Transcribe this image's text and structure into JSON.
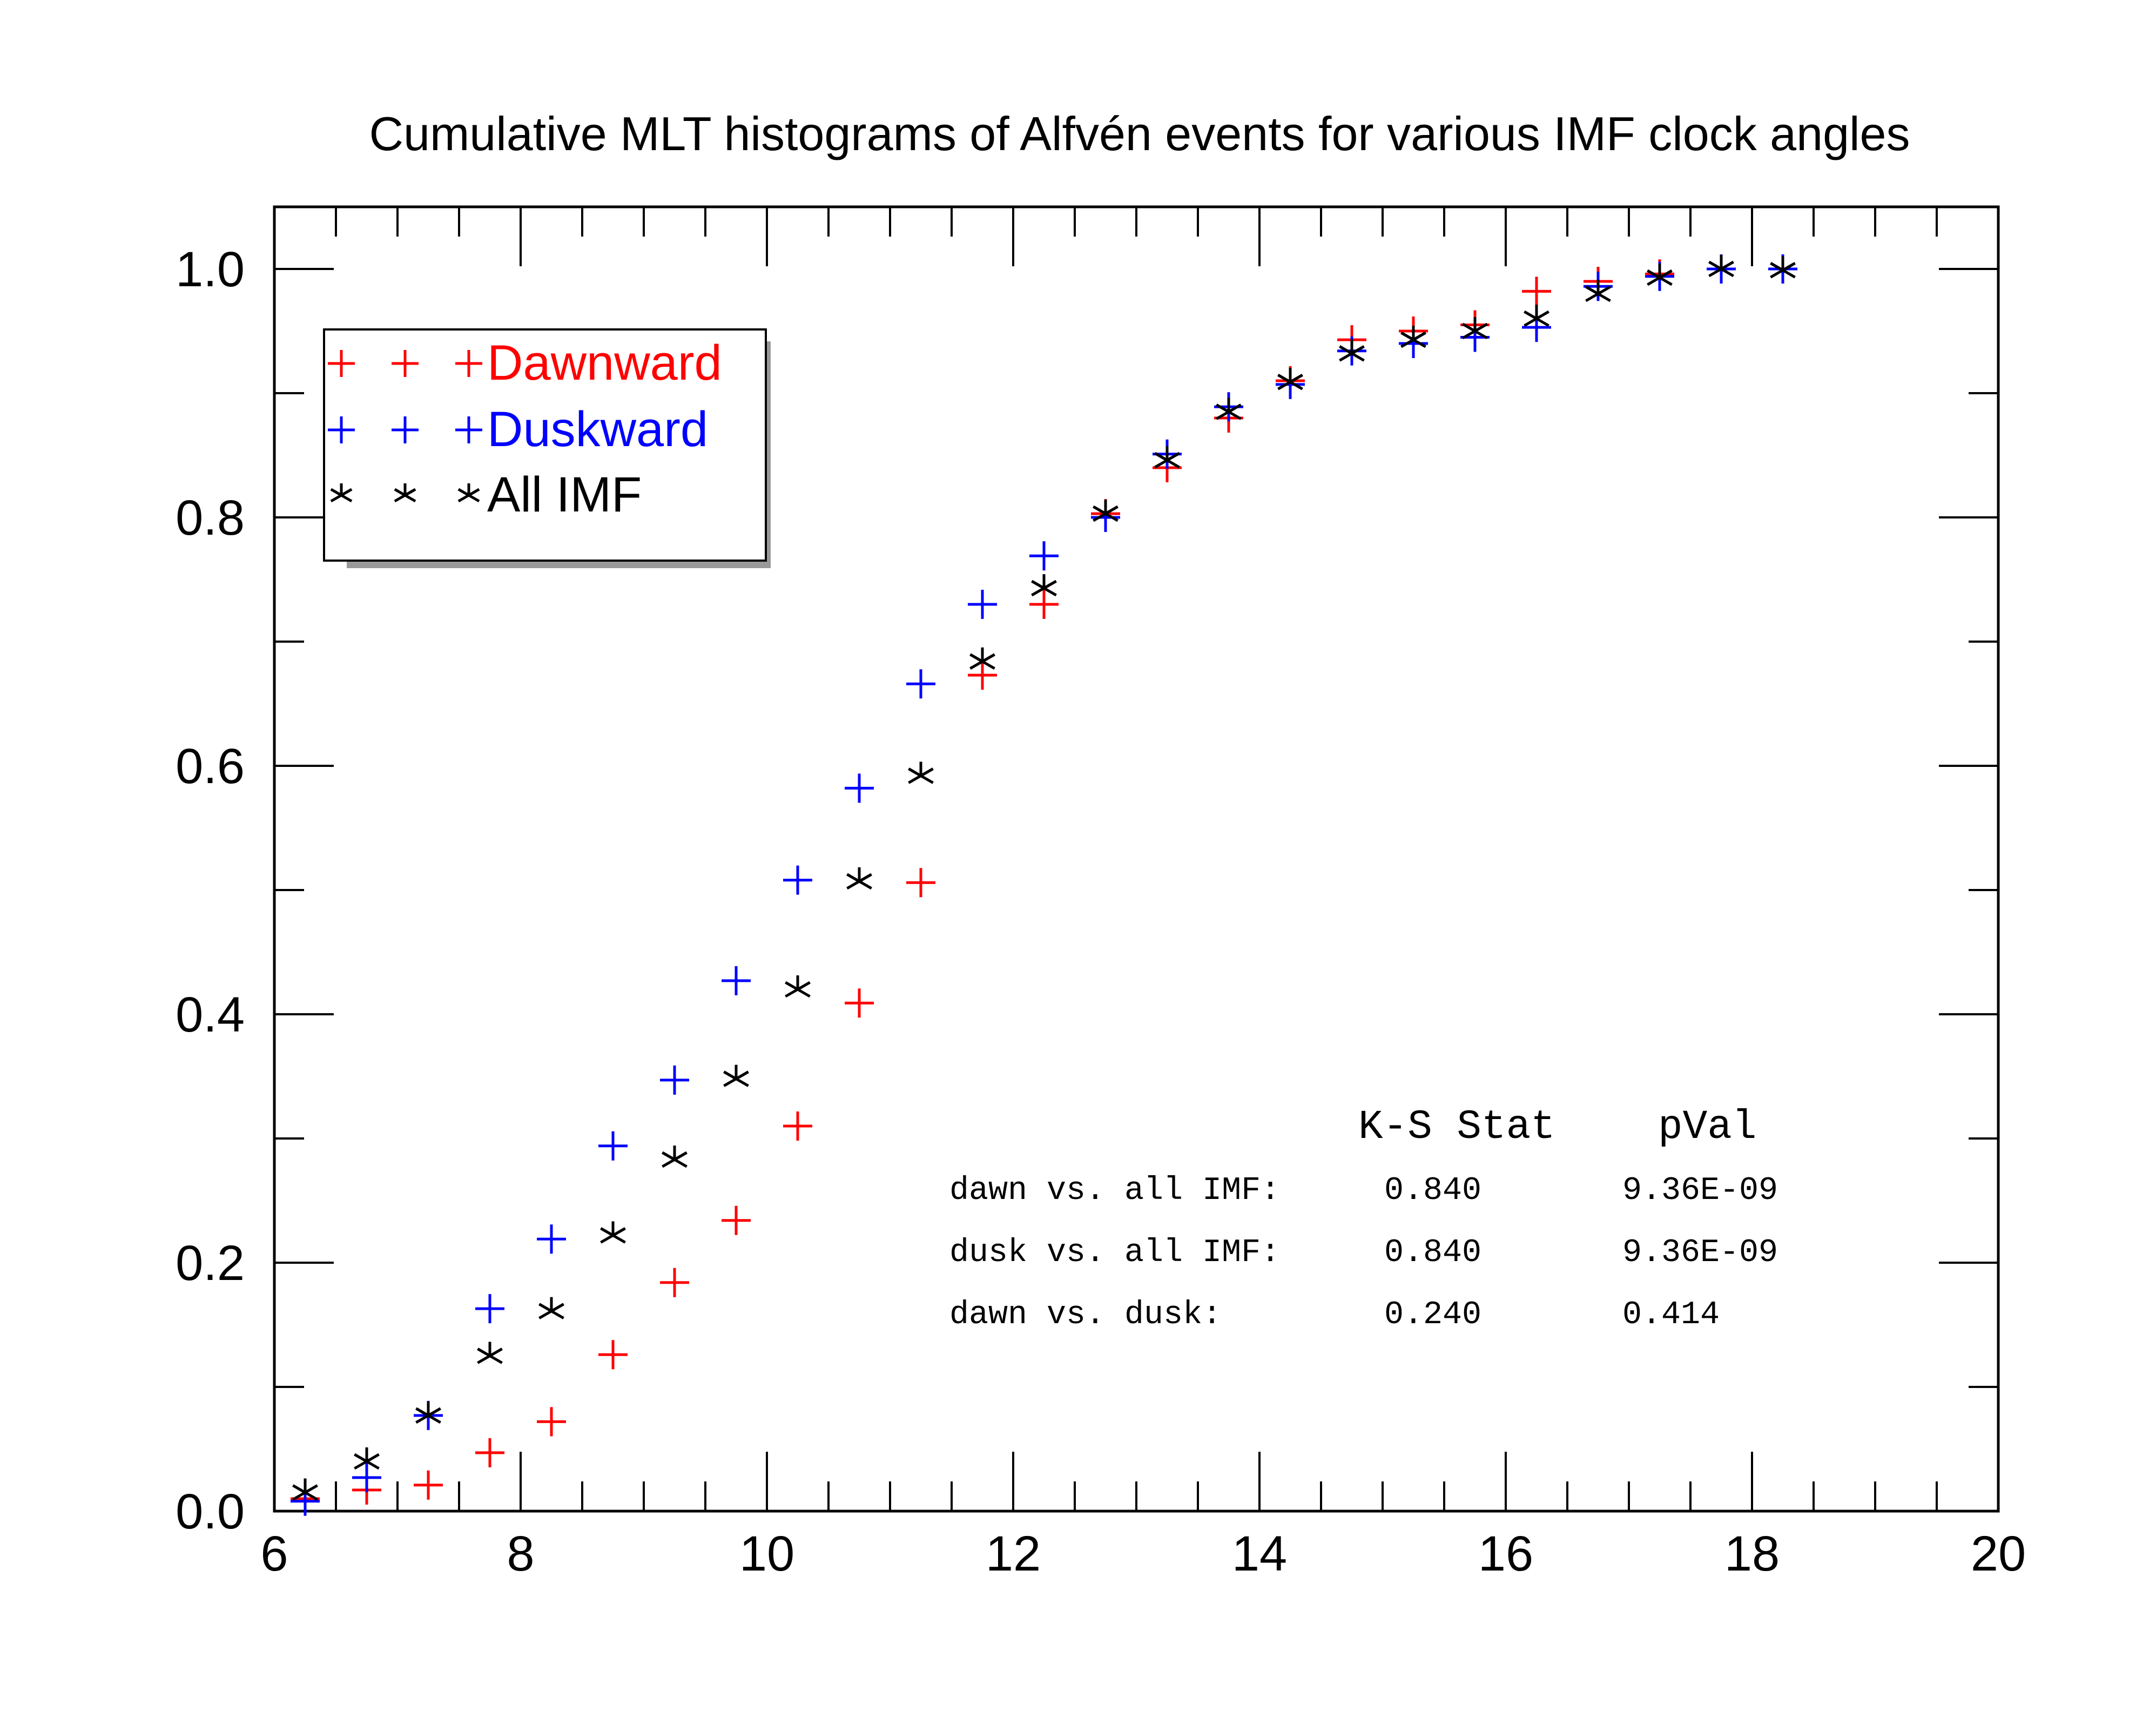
{
  "chart_data": {
    "type": "scatter",
    "title": "Cumulative MLT histograms of Alfvén events for various IMF clock angles",
    "xlabel": "",
    "ylabel": "",
    "xlim": [
      6,
      20
    ],
    "ylim": [
      0,
      1.05
    ],
    "x_ticks": [
      6,
      8,
      10,
      12,
      14,
      16,
      18,
      20
    ],
    "x_tick_labels": [
      "6",
      "8",
      "10",
      "12",
      "14",
      "16",
      "18",
      "20"
    ],
    "y_ticks": [
      0.0,
      0.2,
      0.4,
      0.6,
      0.8,
      1.0
    ],
    "y_tick_labels": [
      "0.0",
      "0.2",
      "0.4",
      "0.6",
      "0.8",
      "1.0"
    ],
    "grid": false,
    "legend_position": "top-left",
    "x": [
      6.25,
      6.75,
      7.25,
      7.75,
      8.25,
      8.75,
      9.25,
      9.75,
      10.25,
      10.75,
      11.25,
      11.75,
      12.25,
      12.75,
      13.25,
      13.75,
      14.25,
      14.75,
      15.25,
      15.75,
      16.25,
      16.75,
      17.25,
      17.75,
      18.25
    ],
    "series": [
      {
        "name": "Dawnward",
        "marker": "plus",
        "color": "#ff0000",
        "values": [
          0.01,
          0.017,
          0.021,
          0.047,
          0.072,
          0.126,
          0.184,
          0.234,
          0.31,
          0.409,
          0.506,
          0.673,
          0.73,
          0.803,
          0.84,
          0.88,
          0.91,
          0.943,
          0.95,
          0.955,
          0.982,
          0.99,
          0.996,
          1.0,
          1.0
        ]
      },
      {
        "name": "Duskward",
        "marker": "plus",
        "color": "#0000ff",
        "values": [
          0.008,
          0.027,
          0.077,
          0.163,
          0.219,
          0.294,
          0.347,
          0.427,
          0.508,
          0.582,
          0.666,
          0.73,
          0.769,
          0.8,
          0.851,
          0.889,
          0.907,
          0.934,
          0.94,
          0.945,
          0.953,
          0.986,
          0.994,
          1.0,
          1.0
        ]
      },
      {
        "name": "All IMF",
        "marker": "asterisk",
        "color": "#000000",
        "values": [
          0.015,
          0.04,
          0.077,
          0.125,
          0.161,
          0.222,
          0.283,
          0.348,
          0.42,
          0.507,
          0.592,
          0.684,
          0.743,
          0.803,
          0.846,
          0.885,
          0.909,
          0.932,
          0.943,
          0.95,
          0.96,
          0.98,
          0.993,
          1.0,
          0.999
        ]
      }
    ],
    "legend_entries": [
      {
        "label": "Dawnward",
        "markers": "+  +  +",
        "color": "#ff0000"
      },
      {
        "label": "Duskward",
        "markers": "+  +  +",
        "color": "#0000ff"
      },
      {
        "label": "All IMF",
        "markers": "*  *  *",
        "color": "#000000"
      }
    ],
    "annotation_table": {
      "headers": [
        "K-S Stat",
        "pVal"
      ],
      "rows": [
        {
          "label": "dawn vs. all IMF:",
          "ks": "0.840",
          "pval": "9.36E-09"
        },
        {
          "label": "dusk vs. all IMF:",
          "ks": "0.840",
          "pval": "9.36E-09"
        },
        {
          "label": "dawn vs. dusk:",
          "ks": "0.240",
          "pval": "0.414"
        }
      ]
    }
  }
}
